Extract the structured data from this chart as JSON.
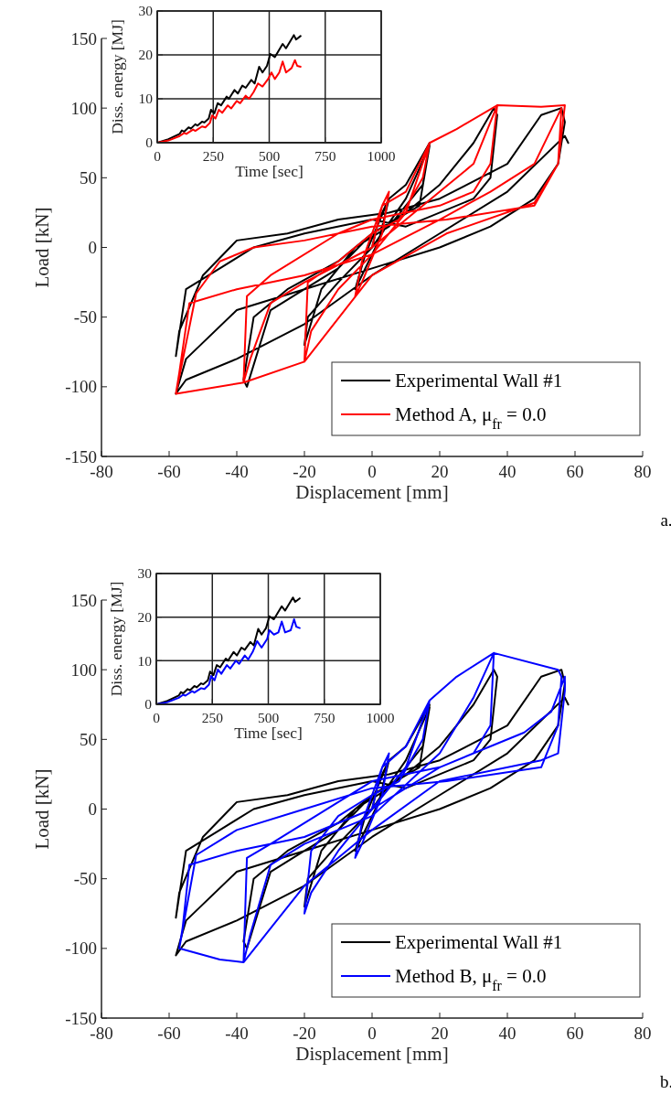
{
  "chart_data": [
    {
      "type": "line",
      "xlabel": "Displacement [mm]",
      "ylabel": "Load [kN]",
      "xlim": [
        -80,
        80
      ],
      "ylim": [
        -150,
        150
      ],
      "xticks": [
        -80,
        -60,
        -40,
        -20,
        0,
        20,
        40,
        60,
        80
      ],
      "yticks": [
        -150,
        -100,
        -50,
        0,
        50,
        100,
        150
      ],
      "legend": "bottom right",
      "annotations": [
        "a."
      ],
      "series": [
        {
          "name": "Experimental Wall #1",
          "color": "#000000",
          "x": [
            0,
            2,
            5,
            2,
            -3,
            -5,
            -2,
            5,
            10,
            17,
            15,
            5,
            -5,
            -15,
            -20,
            -19,
            -10,
            0,
            10,
            17,
            14,
            0,
            -10,
            -20,
            -30,
            -37,
            -38,
            -35,
            -25,
            -10,
            0,
            10,
            20,
            30,
            36,
            37,
            35,
            30,
            10,
            0,
            -20,
            -35,
            -45,
            -55,
            -58,
            -57,
            -50,
            -40,
            -25,
            -10,
            5,
            20,
            40,
            50,
            56,
            57,
            55,
            48,
            35,
            20,
            0,
            -20,
            -40,
            -55,
            -58,
            -55,
            -40,
            -20,
            0,
            20,
            40,
            57,
            58
          ],
          "values": [
            0,
            20,
            35,
            5,
            -20,
            -30,
            -5,
            35,
            45,
            75,
            45,
            15,
            0,
            -30,
            -70,
            -50,
            -25,
            0,
            35,
            73,
            30,
            10,
            -15,
            -30,
            -45,
            -100,
            -95,
            -50,
            -30,
            -10,
            10,
            25,
            45,
            75,
            100,
            95,
            50,
            35,
            15,
            20,
            10,
            0,
            -15,
            -30,
            -78,
            -60,
            -20,
            5,
            10,
            20,
            25,
            35,
            60,
            95,
            100,
            90,
            60,
            35,
            15,
            0,
            -15,
            -30,
            -45,
            -80,
            -105,
            -95,
            -80,
            -55,
            -20,
            10,
            40,
            80,
            75
          ]
        },
        {
          "name": "Method A, μ$_{fr}$ = 0.0",
          "color": "#ff0000",
          "x": [
            0,
            3,
            5,
            3,
            -3,
            -5,
            -3,
            3,
            10,
            17,
            15,
            8,
            0,
            -10,
            -19,
            -20,
            -18,
            -10,
            0,
            10,
            17,
            25,
            37,
            35,
            30,
            20,
            0,
            -10,
            -30,
            -37,
            -38,
            -36,
            -30,
            -20,
            0,
            20,
            30,
            37,
            50,
            57,
            55,
            48,
            22,
            0,
            -20,
            -35,
            -45,
            -52,
            -58,
            -57,
            -54,
            -40,
            -20,
            0,
            20,
            35,
            48,
            56,
            55,
            48,
            22,
            0,
            -20,
            -38,
            -58
          ],
          "values": [
            0,
            30,
            40,
            10,
            -25,
            -35,
            -10,
            30,
            40,
            75,
            50,
            20,
            10,
            -10,
            -25,
            -82,
            -60,
            -30,
            -5,
            25,
            75,
            85,
            102,
            60,
            40,
            30,
            20,
            10,
            -20,
            -35,
            -97,
            -80,
            -40,
            -25,
            0,
            40,
            60,
            102,
            101,
            102,
            60,
            30,
            20,
            15,
            5,
            0,
            -10,
            -33,
            -105,
            -90,
            -40,
            -30,
            -20,
            -5,
            20,
            40,
            60,
            100,
            60,
            32,
            10,
            -20,
            -82,
            -97,
            -105
          ]
        }
      ]
    },
    {
      "type": "line",
      "xlabel": "Time [sec]",
      "ylabel": "Diss. energy [MJ]",
      "xlim": [
        0,
        1000
      ],
      "ylim": [
        0,
        30
      ],
      "xticks": [
        0,
        250,
        500,
        750,
        1000
      ],
      "yticks": [
        0,
        10,
        20,
        30
      ],
      "grid": true,
      "series": [
        {
          "color": "#000000",
          "x": [
            0,
            50,
            100,
            110,
            120,
            140,
            150,
            170,
            180,
            200,
            210,
            230,
            240,
            255,
            270,
            285,
            310,
            320,
            345,
            360,
            380,
            395,
            420,
            435,
            455,
            470,
            490,
            505,
            525,
            560,
            575,
            610,
            620,
            640
          ],
          "values": [
            0,
            0.8,
            2,
            2.8,
            2.5,
            3.5,
            3.2,
            4.2,
            3.9,
            4.8,
            4.6,
            5.5,
            7.5,
            6.7,
            9,
            8.5,
            10.5,
            10,
            12,
            11.2,
            13,
            12.5,
            14.3,
            13.5,
            17.3,
            16,
            17.5,
            20.2,
            19.5,
            22.5,
            21.5,
            24.5,
            23.5,
            24.3
          ]
        },
        {
          "color": "#ff0000",
          "x": [
            0,
            50,
            100,
            120,
            130,
            160,
            170,
            200,
            215,
            235,
            245,
            260,
            275,
            290,
            315,
            330,
            355,
            370,
            395,
            410,
            430,
            450,
            470,
            495,
            510,
            525,
            545,
            560,
            575,
            600,
            615,
            625,
            640
          ],
          "values": [
            0,
            0.5,
            1.5,
            2.2,
            2,
            3,
            2.7,
            3.7,
            3.5,
            4.5,
            6.2,
            5.5,
            7.5,
            6.8,
            8.5,
            7.8,
            9.5,
            9,
            10.7,
            10,
            11.5,
            13.5,
            12.8,
            14.5,
            16,
            14.5,
            16,
            18.5,
            16,
            17,
            18.8,
            17.5,
            17.3
          ]
        }
      ]
    },
    {
      "type": "line",
      "xlabel": "Displacement [mm]",
      "ylabel": "Load [kN]",
      "xlim": [
        -80,
        80
      ],
      "ylim": [
        -150,
        150
      ],
      "xticks": [
        -80,
        -60,
        -40,
        -20,
        0,
        20,
        40,
        60,
        80
      ],
      "yticks": [
        -150,
        -100,
        -50,
        0,
        50,
        100,
        150
      ],
      "legend": "bottom right",
      "annotations": [
        "b."
      ],
      "series": [
        {
          "name": "Experimental Wall #1",
          "color": "#000000",
          "x": [
            0,
            2,
            5,
            2,
            -3,
            -5,
            -2,
            5,
            10,
            17,
            15,
            5,
            -5,
            -15,
            -20,
            -19,
            -10,
            0,
            10,
            17,
            14,
            0,
            -10,
            -20,
            -30,
            -37,
            -38,
            -35,
            -25,
            -10,
            0,
            10,
            20,
            30,
            36,
            37,
            35,
            30,
            10,
            0,
            -20,
            -35,
            -45,
            -55,
            -58,
            -57,
            -50,
            -40,
            -25,
            -10,
            5,
            20,
            40,
            50,
            56,
            57,
            55,
            48,
            35,
            20,
            0,
            -20,
            -40,
            -55,
            -58,
            -55,
            -40,
            -20,
            0,
            20,
            40,
            57,
            58
          ],
          "values": [
            0,
            20,
            35,
            5,
            -20,
            -30,
            -5,
            35,
            45,
            75,
            45,
            15,
            0,
            -30,
            -70,
            -50,
            -25,
            0,
            35,
            73,
            30,
            10,
            -15,
            -30,
            -45,
            -100,
            -95,
            -50,
            -30,
            -10,
            10,
            25,
            45,
            75,
            100,
            95,
            50,
            35,
            15,
            20,
            10,
            0,
            -15,
            -30,
            -78,
            -60,
            -20,
            5,
            10,
            20,
            25,
            35,
            60,
            95,
            100,
            90,
            60,
            35,
            15,
            0,
            -15,
            -30,
            -45,
            -80,
            -105,
            -95,
            -80,
            -55,
            -20,
            10,
            40,
            80,
            75
          ]
        },
        {
          "name": "Method B, μ$_{fr}$ = 0.0",
          "color": "#0000ff",
          "x": [
            0,
            3,
            5,
            3,
            -3,
            -5,
            -3,
            3,
            10,
            17,
            15,
            8,
            0,
            -10,
            -18,
            -20,
            -18,
            -10,
            0,
            10,
            17,
            25,
            36,
            35,
            30,
            20,
            0,
            -10,
            -30,
            -37,
            -38,
            -36,
            -30,
            -20,
            0,
            20,
            30,
            36,
            55,
            56,
            55,
            50,
            22,
            0,
            -20,
            -40,
            -52,
            -57,
            -56,
            -54,
            -40,
            -20,
            0,
            20,
            45,
            53,
            57,
            57,
            55,
            50,
            20,
            0,
            -20,
            -38,
            -45,
            -57
          ],
          "values": [
            0,
            30,
            40,
            10,
            -25,
            -35,
            -10,
            30,
            45,
            78,
            50,
            20,
            10,
            -5,
            -30,
            -75,
            -60,
            -30,
            0,
            30,
            78,
            95,
            112,
            60,
            40,
            30,
            20,
            5,
            -25,
            -35,
            -110,
            -90,
            -40,
            -25,
            -5,
            40,
            80,
            112,
            100,
            95,
            60,
            30,
            20,
            15,
            0,
            -15,
            -33,
            -100,
            -85,
            -40,
            -30,
            -20,
            0,
            30,
            55,
            70,
            95,
            85,
            40,
            35,
            20,
            -15,
            -55,
            -110,
            -108,
            -100
          ]
        }
      ]
    },
    {
      "type": "line",
      "xlabel": "Time [sec]",
      "ylabel": "Diss. energy [MJ]",
      "xlim": [
        0,
        1000
      ],
      "ylim": [
        0,
        30
      ],
      "xticks": [
        0,
        250,
        500,
        750,
        1000
      ],
      "yticks": [
        0,
        10,
        20,
        30
      ],
      "grid": true,
      "series": [
        {
          "color": "#000000",
          "x": [
            0,
            50,
            100,
            110,
            120,
            140,
            150,
            170,
            180,
            200,
            210,
            230,
            240,
            255,
            270,
            285,
            310,
            320,
            345,
            360,
            380,
            395,
            420,
            435,
            455,
            470,
            490,
            505,
            525,
            560,
            575,
            610,
            620,
            640
          ],
          "values": [
            0,
            0.8,
            2,
            2.8,
            2.5,
            3.5,
            3.2,
            4.2,
            3.9,
            4.8,
            4.6,
            5.5,
            7.5,
            6.7,
            9,
            8.5,
            10.5,
            10,
            12,
            11.2,
            13,
            12.5,
            14.3,
            13.5,
            17.3,
            16,
            17.5,
            20.2,
            19.5,
            22.5,
            21.5,
            24.5,
            23.5,
            24.3
          ]
        },
        {
          "color": "#0000ff",
          "x": [
            0,
            50,
            100,
            120,
            130,
            160,
            170,
            200,
            215,
            235,
            245,
            260,
            275,
            290,
            315,
            330,
            355,
            370,
            395,
            410,
            430,
            450,
            470,
            495,
            505,
            525,
            545,
            560,
            575,
            600,
            615,
            625,
            640
          ],
          "values": [
            0,
            0.5,
            1.5,
            2.2,
            2,
            3,
            2.7,
            3.7,
            3.5,
            4.5,
            6.5,
            5.5,
            8,
            7,
            9,
            8.2,
            10,
            9.3,
            11.2,
            10.3,
            12,
            14.5,
            13,
            15,
            17,
            16,
            16.5,
            19,
            16.5,
            17,
            19.5,
            17.8,
            17.5
          ]
        }
      ]
    }
  ]
}
